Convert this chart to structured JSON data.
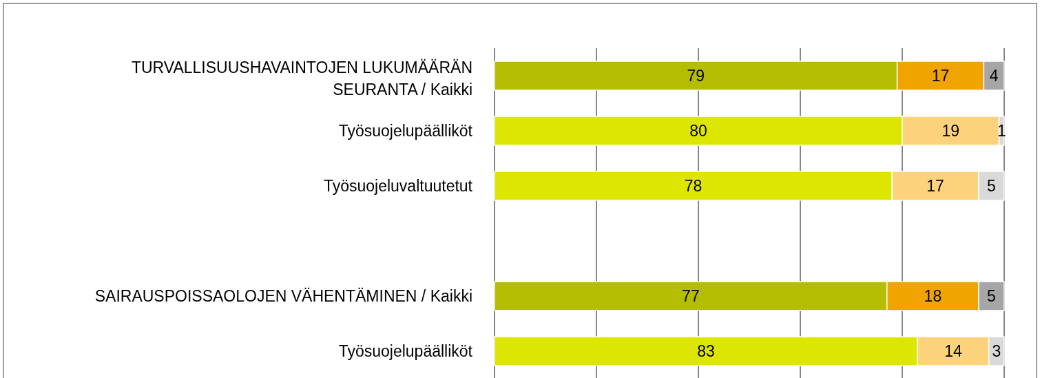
{
  "chart_data": {
    "type": "bar",
    "orientation": "horizontal",
    "stacked": true,
    "categories": [
      "TURVALLISUUSHAVAINTOJEN LUKUMÄÄRÄN SEURANTA / Kaikki",
      "Työsuojelupäälliköt",
      "Työsuojeluvaltuutetut",
      null,
      "SAIRAUSPOISSAOLOJEN VÄHENTÄMINEN / Kaikki",
      "Työsuojelupäälliköt"
    ],
    "series": [
      {
        "values": [
          79,
          80,
          78,
          null,
          77,
          83
        ],
        "colors": [
          "#b5bd00",
          "#dde600",
          "#dde600",
          null,
          "#b5bd00",
          "#dde600"
        ]
      },
      {
        "values": [
          17,
          19,
          17,
          null,
          18,
          14
        ],
        "colors": [
          "#f0a400",
          "#fdd27c",
          "#fdd27c",
          null,
          "#f0a400",
          "#fdd27c"
        ]
      },
      {
        "values": [
          4,
          1,
          5,
          null,
          5,
          3
        ],
        "colors": [
          "#a6a6a6",
          "#d9d9d9",
          "#d9d9d9",
          null,
          "#a6a6a6",
          "#d9d9d9"
        ]
      }
    ],
    "xlim": [
      0,
      100
    ],
    "xticks": [
      {
        "value": 0,
        "label": null
      },
      {
        "value": 20,
        "label": null
      },
      {
        "value": 40,
        "label": null
      },
      {
        "value": 60,
        "label": null
      },
      {
        "value": 80,
        "label": null
      },
      {
        "value": 100,
        "label": null
      }
    ],
    "grid": "x",
    "data_labels": true,
    "tick_labels": "y"
  }
}
